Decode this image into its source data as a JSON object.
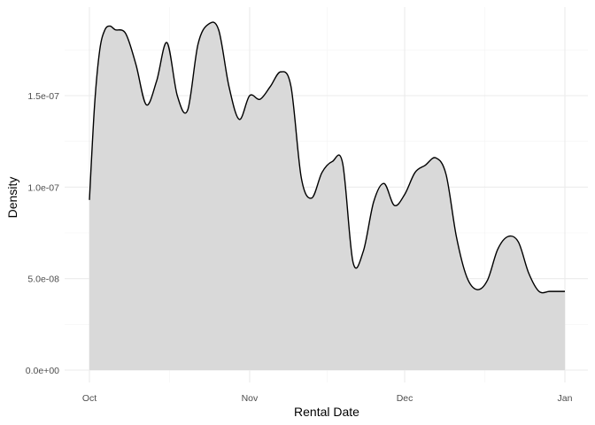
{
  "chart_data": {
    "type": "area",
    "title": "",
    "xlabel": "Rental Date",
    "ylabel": "Density",
    "x_ticks": [
      "Oct",
      "Nov",
      "Dec",
      "Jan"
    ],
    "y_ticks": [
      "0.0e+00",
      "5.0e-08",
      "1.0e-07",
      "1.5e-07"
    ],
    "xlim": [
      "2005-10-01",
      "2006-01-01"
    ],
    "ylim": [
      0,
      1.9e-07
    ],
    "grid": true,
    "fill_color": "#d9d9d9",
    "line_color": "#000000",
    "series": [
      {
        "x": [
          "2005-10-01",
          "2005-10-02",
          "2005-10-03",
          "2005-10-04",
          "2005-10-05",
          "2005-10-06",
          "2005-10-08",
          "2005-10-10",
          "2005-10-12",
          "2005-10-14",
          "2005-10-16",
          "2005-10-18",
          "2005-10-20",
          "2005-10-22",
          "2005-10-24",
          "2005-10-26",
          "2005-10-28",
          "2005-10-30",
          "2005-11-01",
          "2005-11-03",
          "2005-11-05",
          "2005-11-07",
          "2005-11-09",
          "2005-11-11",
          "2005-11-13",
          "2005-11-15",
          "2005-11-17",
          "2005-11-19",
          "2005-11-21",
          "2005-11-23",
          "2005-11-25",
          "2005-11-27",
          "2005-11-29",
          "2005-12-01",
          "2005-12-03",
          "2005-12-05",
          "2005-12-07",
          "2005-12-09",
          "2005-12-11",
          "2005-12-13",
          "2005-12-15",
          "2005-12-17",
          "2005-12-19",
          "2005-12-21",
          "2005-12-23",
          "2005-12-25",
          "2005-12-27",
          "2005-12-29",
          "2005-12-31",
          "2006-01-01"
        ],
        "y": [
          9.3e-08,
          1.45e-07,
          1.75e-07,
          1.86e-07,
          1.88e-07,
          1.86e-07,
          1.84e-07,
          1.67e-07,
          1.45e-07,
          1.58e-07,
          1.79e-07,
          1.5e-07,
          1.42e-07,
          1.78e-07,
          1.89e-07,
          1.86e-07,
          1.55e-07,
          1.37e-07,
          1.5e-07,
          1.48e-07,
          1.55e-07,
          1.63e-07,
          1.55e-07,
          1.05e-07,
          9.4e-08,
          1.08e-07,
          1.14e-07,
          1.13e-07,
          5.9e-08,
          6.5e-08,
          9.2e-08,
          1.02e-07,
          9e-08,
          9.6e-08,
          1.08e-07,
          1.12e-07,
          1.16e-07,
          1.07e-07,
          7.3e-08,
          5.1e-08,
          4.4e-08,
          4.9e-08,
          6.6e-08,
          7.3e-08,
          7e-08,
          5.3e-08,
          4.3e-08,
          4.3e-08,
          4.3e-08,
          4.3e-08
        ]
      }
    ]
  }
}
